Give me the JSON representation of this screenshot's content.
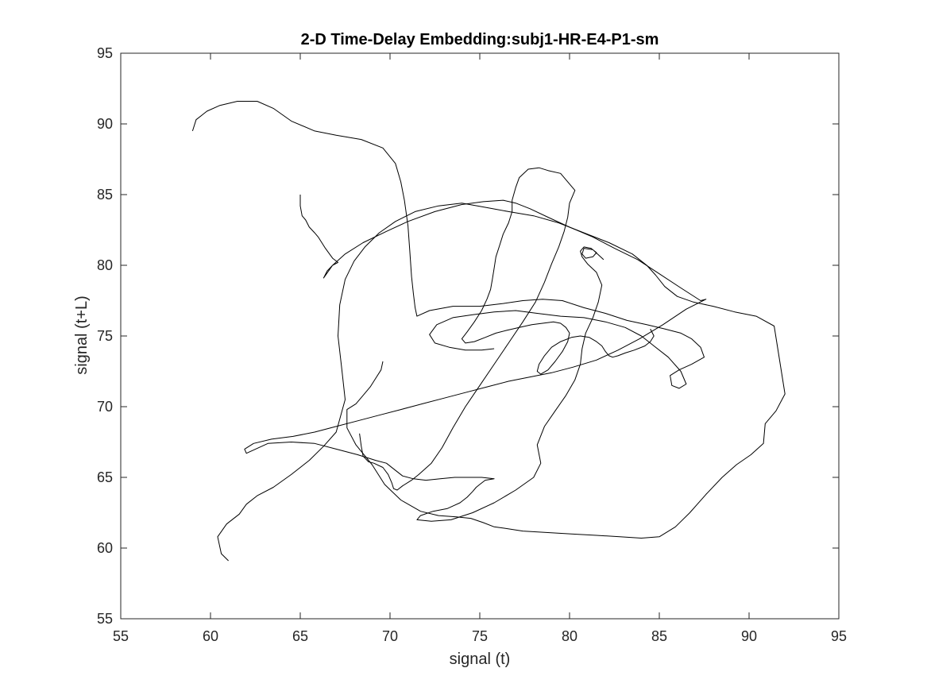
{
  "chart_data": {
    "type": "line",
    "title": "2-D Time-Delay Embedding:subj1-HR-E4-P1-sm",
    "xlabel": "signal (t)",
    "ylabel": "signal (t+L)",
    "xlim": [
      55,
      95
    ],
    "ylim": [
      55,
      95
    ],
    "xticks": [
      "55",
      "60",
      "65",
      "70",
      "75",
      "80",
      "85",
      "90",
      "95"
    ],
    "yticks": [
      "55",
      "60",
      "65",
      "70",
      "75",
      "80",
      "85",
      "90",
      "95"
    ],
    "grid": false,
    "legend": "none",
    "line_color": "#000000",
    "series": [
      {
        "x": [
          65.0,
          65.0,
          65.1,
          65.3,
          65.5,
          65.8,
          66.0,
          66.4,
          66.8,
          67.1,
          66.8,
          66.5,
          66.3,
          66.8,
          67.5,
          68.5,
          69.8,
          71.0,
          72.5,
          74.0,
          75.2,
          76.3,
          77.0,
          77.8,
          78.8,
          80.0,
          81.3,
          82.5,
          83.8,
          85.0,
          86.2,
          87.3,
          87.6,
          86.5,
          85.2,
          83.9,
          82.7,
          81.5,
          80.2,
          79.0,
          77.8,
          76.6,
          75.4,
          74.2,
          73.0,
          71.8,
          70.6,
          69.4,
          68.2,
          67.0,
          65.8,
          64.6,
          63.4,
          62.4,
          61.9,
          62.0,
          63.2,
          64.5,
          65.8,
          67.0,
          68.2,
          69.2,
          69.8,
          70.2,
          70.7,
          71.3,
          72.0,
          72.8,
          73.6,
          74.4,
          75.1,
          75.8,
          75.3,
          75.0,
          74.8,
          74.6,
          74.3,
          73.9,
          73.2,
          72.4,
          71.7,
          71.5,
          72.3,
          73.4,
          74.6,
          75.8,
          77.0,
          78.0,
          78.4,
          78.2,
          78.6,
          79.2,
          79.8,
          80.3,
          80.6,
          80.7,
          80.9,
          81.3,
          81.6,
          81.8,
          81.5,
          81.0,
          80.7,
          80.6,
          80.8,
          81.2,
          81.5,
          81.3,
          80.9,
          80.7,
          80.8,
          81.3,
          81.9
        ],
        "y": [
          85.0,
          84.2,
          83.5,
          83.2,
          82.7,
          82.3,
          82.0,
          81.2,
          80.5,
          80.2,
          80.0,
          79.6,
          79.1,
          80.0,
          80.8,
          81.6,
          82.4,
          83.1,
          83.8,
          84.3,
          84.5,
          84.6,
          84.4,
          84.0,
          83.4,
          82.7,
          82.0,
          81.2,
          80.4,
          79.4,
          78.4,
          77.5,
          77.6,
          76.9,
          75.8,
          74.8,
          74.0,
          73.3,
          72.8,
          72.4,
          72.1,
          71.8,
          71.4,
          71.0,
          70.6,
          70.2,
          69.8,
          69.4,
          69.0,
          68.6,
          68.2,
          67.9,
          67.7,
          67.4,
          67.0,
          66.7,
          67.4,
          67.5,
          67.4,
          67.0,
          66.6,
          66.2,
          66.0,
          65.6,
          65.1,
          64.9,
          64.8,
          64.9,
          65.0,
          65.0,
          65.0,
          64.9,
          64.8,
          64.5,
          64.3,
          64.0,
          63.6,
          63.2,
          62.8,
          62.6,
          62.3,
          62.0,
          61.9,
          62.0,
          62.5,
          63.2,
          64.1,
          65.0,
          66.0,
          67.3,
          68.6,
          69.7,
          70.8,
          71.9,
          73.0,
          74.1,
          75.2,
          76.3,
          77.4,
          78.6,
          79.5,
          80.1,
          80.6,
          81.0,
          81.3,
          81.2,
          80.9,
          80.6,
          80.5,
          80.8,
          81.2,
          81.1,
          80.4
        ]
      },
      {
        "x": [
          59.0,
          59.2,
          59.8,
          60.5,
          61.5,
          62.6,
          63.5,
          64.5,
          65.8,
          67.0,
          68.4,
          69.6,
          70.3,
          70.6,
          70.8,
          71.0,
          71.1,
          71.2,
          71.3,
          71.4,
          71.5,
          72.2,
          73.5,
          75.0,
          76.3,
          77.4,
          78.5,
          79.6,
          80.8,
          82.0,
          83.2,
          84.3,
          85.3,
          86.2,
          86.8,
          87.3,
          87.5,
          86.8,
          86.1,
          85.6,
          85.7,
          86.1,
          86.5,
          86.2,
          85.5,
          84.7,
          84.0,
          83.1,
          82.0,
          80.8,
          79.5,
          78.2,
          77.0,
          75.8,
          74.6,
          73.5,
          72.6,
          72.2,
          72.5,
          73.3,
          74.2,
          75.1,
          75.8
        ],
        "y": [
          89.5,
          90.3,
          90.9,
          91.3,
          91.6,
          91.6,
          91.1,
          90.2,
          89.5,
          89.2,
          88.9,
          88.3,
          87.2,
          85.9,
          84.6,
          82.8,
          81.0,
          79.2,
          78.0,
          77.0,
          76.4,
          76.8,
          77.1,
          77.1,
          77.3,
          77.5,
          77.6,
          77.5,
          77.0,
          76.6,
          76.1,
          75.8,
          75.5,
          75.2,
          74.8,
          74.2,
          73.5,
          73.0,
          72.6,
          72.2,
          71.5,
          71.3,
          71.6,
          72.5,
          73.5,
          74.3,
          75.0,
          75.6,
          76.0,
          76.3,
          76.4,
          76.6,
          76.8,
          76.7,
          76.5,
          76.3,
          75.8,
          75.1,
          74.5,
          74.2,
          74.0,
          74.0,
          74.1
        ]
      },
      {
        "x": [
          61.0,
          60.6,
          60.4,
          60.9,
          61.6,
          62.0,
          62.6,
          63.5,
          64.5,
          65.5,
          66.3,
          67.0,
          67.5,
          67.3,
          67.1,
          67.2,
          67.5,
          68.0,
          68.6,
          69.4,
          70.3,
          71.4,
          72.7,
          74.0,
          75.3,
          76.6,
          78.0,
          79.4,
          80.8,
          82.2,
          83.5,
          84.3,
          84.8,
          85.3,
          86.0,
          86.9,
          88.0,
          89.2,
          90.4,
          91.4,
          92.0,
          91.5,
          90.9,
          90.8,
          90.1,
          89.3,
          88.5,
          87.6,
          86.7,
          85.9,
          85.0,
          84.0,
          82.8,
          81.5,
          80.1,
          78.7,
          77.4,
          76.4,
          75.8,
          75.2,
          74.5,
          73.7,
          72.7,
          71.7,
          70.6,
          69.7,
          69.0,
          68.1,
          67.6,
          67.6,
          68.1,
          68.5,
          68.9,
          69.2,
          69.5,
          69.6
        ],
        "y": [
          59.1,
          59.6,
          60.8,
          61.7,
          62.4,
          63.1,
          63.7,
          64.3,
          65.2,
          66.2,
          67.2,
          68.2,
          70.5,
          72.8,
          75.0,
          77.2,
          79.0,
          80.3,
          81.3,
          82.3,
          83.1,
          83.8,
          84.2,
          84.4,
          84.1,
          83.8,
          83.5,
          83.0,
          82.3,
          81.6,
          80.8,
          80.0,
          79.3,
          78.5,
          77.8,
          77.4,
          77.1,
          76.7,
          76.4,
          75.7,
          70.9,
          69.7,
          68.8,
          67.4,
          66.6,
          65.9,
          65.0,
          63.8,
          62.5,
          61.5,
          60.8,
          60.7,
          60.8,
          60.9,
          61.0,
          61.1,
          61.2,
          61.4,
          61.5,
          61.8,
          62.1,
          62.2,
          62.3,
          62.6,
          63.4,
          64.5,
          65.9,
          67.3,
          68.5,
          69.8,
          70.2,
          70.8,
          71.4,
          72.0,
          72.6,
          73.2
        ]
      },
      {
        "x": [
          68.3,
          68.4,
          68.5,
          68.8,
          69.1,
          69.6,
          69.9,
          70.1,
          70.2,
          70.4,
          70.7,
          71.2,
          71.6,
          72.3,
          72.9,
          73.5,
          74.2,
          75.0,
          75.8,
          76.6,
          77.4,
          78.1,
          78.6,
          79.0,
          79.4,
          79.7,
          79.9,
          80.0,
          80.3,
          79.5,
          78.8,
          78.3,
          77.7,
          77.2,
          77.0,
          76.8,
          76.8,
          76.6,
          76.3,
          76.1,
          75.9,
          75.8,
          75.7,
          75.6,
          75.4,
          75.1,
          74.7,
          74.3,
          74.0,
          74.2,
          74.7,
          75.3,
          75.9,
          76.5,
          77.2,
          77.9,
          78.5,
          79.1,
          79.5,
          79.8,
          80.0,
          79.9,
          79.6,
          79.2,
          78.8,
          78.4,
          78.2,
          78.3,
          78.6,
          79.0,
          79.5,
          80.1,
          80.6,
          81.1,
          81.5,
          81.8,
          82.0,
          82.2,
          82.4,
          82.7,
          83.1,
          83.6,
          84.2,
          84.5,
          84.7,
          84.5
        ],
        "y": [
          68.1,
          67.2,
          66.5,
          66.1,
          66.0,
          65.7,
          65.2,
          64.6,
          64.2,
          64.1,
          64.4,
          64.8,
          65.2,
          66.0,
          67.1,
          68.5,
          70.0,
          71.5,
          73.0,
          74.5,
          76.0,
          77.4,
          78.8,
          80.1,
          81.3,
          82.4,
          83.4,
          84.4,
          85.3,
          86.5,
          86.7,
          86.9,
          86.8,
          86.2,
          85.5,
          84.6,
          83.8,
          83.0,
          82.2,
          81.4,
          80.6,
          79.8,
          79.0,
          78.3,
          77.6,
          76.8,
          76.0,
          75.3,
          74.8,
          74.5,
          74.6,
          74.9,
          75.2,
          75.4,
          75.6,
          75.8,
          75.9,
          76.0,
          75.9,
          75.6,
          75.2,
          74.6,
          73.9,
          73.2,
          72.6,
          72.3,
          72.5,
          73.0,
          73.6,
          74.2,
          74.6,
          74.9,
          75.0,
          74.9,
          74.6,
          74.3,
          73.9,
          73.6,
          73.5,
          73.6,
          73.8,
          74.0,
          74.3,
          74.6,
          75.0,
          75.5
        ]
      }
    ]
  }
}
